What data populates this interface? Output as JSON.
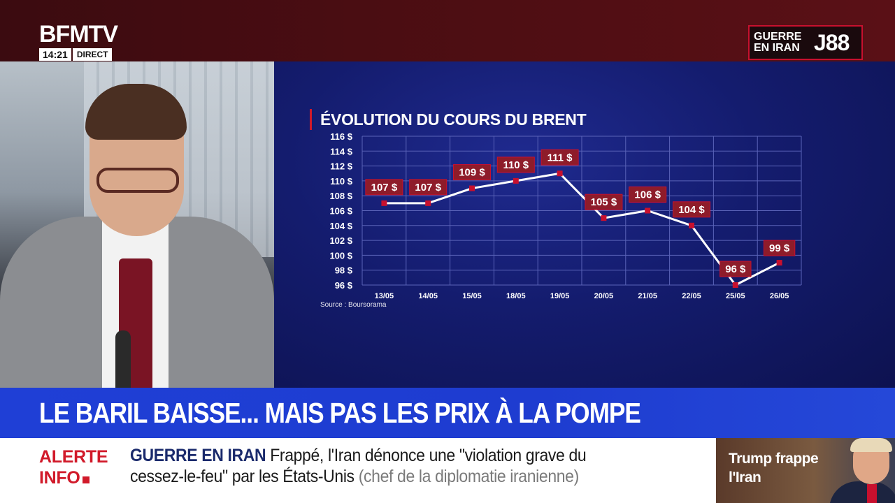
{
  "channel": {
    "logo": "BFMTV",
    "time": "14:21",
    "live": "DIRECT"
  },
  "badge": {
    "label_line1": "GUERRE",
    "label_line2": "EN IRAN",
    "day": "J88",
    "accent": "#c8102e"
  },
  "chart_data": {
    "type": "line",
    "title": "ÉVOLUTION DU COURS DU BRENT",
    "source": "Source : Boursorama",
    "categories": [
      "13/05",
      "14/05",
      "15/05",
      "18/05",
      "19/05",
      "20/05",
      "21/05",
      "22/05",
      "25/05",
      "26/05"
    ],
    "values": [
      107,
      107,
      109,
      110,
      111,
      105,
      106,
      104,
      96,
      99
    ],
    "data_labels": [
      "107 $",
      "107 $",
      "109 $",
      "110 $",
      "111 $",
      "105 $",
      "106 $",
      "104 $",
      "96 $",
      "99 $"
    ],
    "y_ticks": [
      {
        "v": 96,
        "label": "96 $"
      },
      {
        "v": 98,
        "label": "98 $"
      },
      {
        "v": 100,
        "label": "100 $"
      },
      {
        "v": 102,
        "label": "102 $"
      },
      {
        "v": 104,
        "label": "104 $"
      },
      {
        "v": 106,
        "label": "106 $"
      },
      {
        "v": 108,
        "label": "108 $"
      },
      {
        "v": 110,
        "label": "110 $"
      },
      {
        "v": 112,
        "label": "112 $"
      },
      {
        "v": 114,
        "label": "114 $"
      },
      {
        "v": 116,
        "label": "116 $"
      }
    ],
    "ylim": [
      96,
      116
    ],
    "grid": true,
    "line_color": "#ffffff",
    "marker_color": "#c8102e",
    "label_bg": "#8e1c2a"
  },
  "headline": "LE BARIL BAISSE... MAIS PAS LES PRIX À LA POMPE",
  "ticker": {
    "alert_line1": "ALERTE",
    "alert_line2": "INFO",
    "topic": "GUERRE EN IRAN",
    "text_line1": "Frappé, l'Iran dénonce une \"violation grave du",
    "text_line2": "cessez-le-feu\" par les États-Unis",
    "text_grey": "(chef de la diplomatie iranienne)"
  },
  "thumbnail": {
    "line1": "Trump frappe",
    "line2": "l'Iran"
  }
}
